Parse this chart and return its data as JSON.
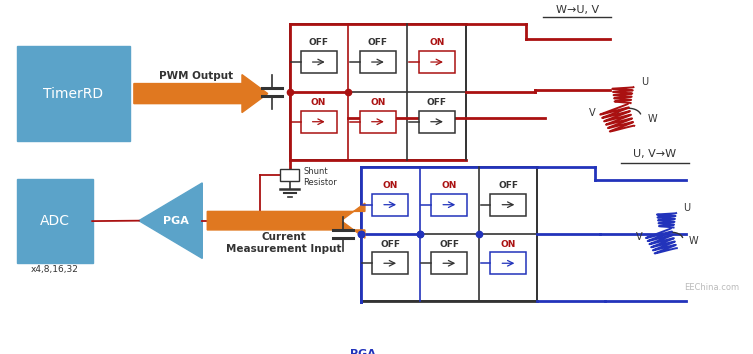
{
  "bg_color": "#ffffff",
  "top_label": "W→U, V",
  "bottom_label": "U, V→W",
  "red_color": "#aa1111",
  "blue_color": "#2233bb",
  "dark_color": "#333333",
  "orange_color": "#e07820",
  "sblue_color": "#5ba3c9",
  "pwm_label": "PWM Output",
  "current_label": "Current\nMeasurement Input",
  "shunt_label": "Shunt\nResistor",
  "pga_label": "PGA",
  "x4_label": "x4,8,16,32",
  "eechina": "EEChina.com"
}
